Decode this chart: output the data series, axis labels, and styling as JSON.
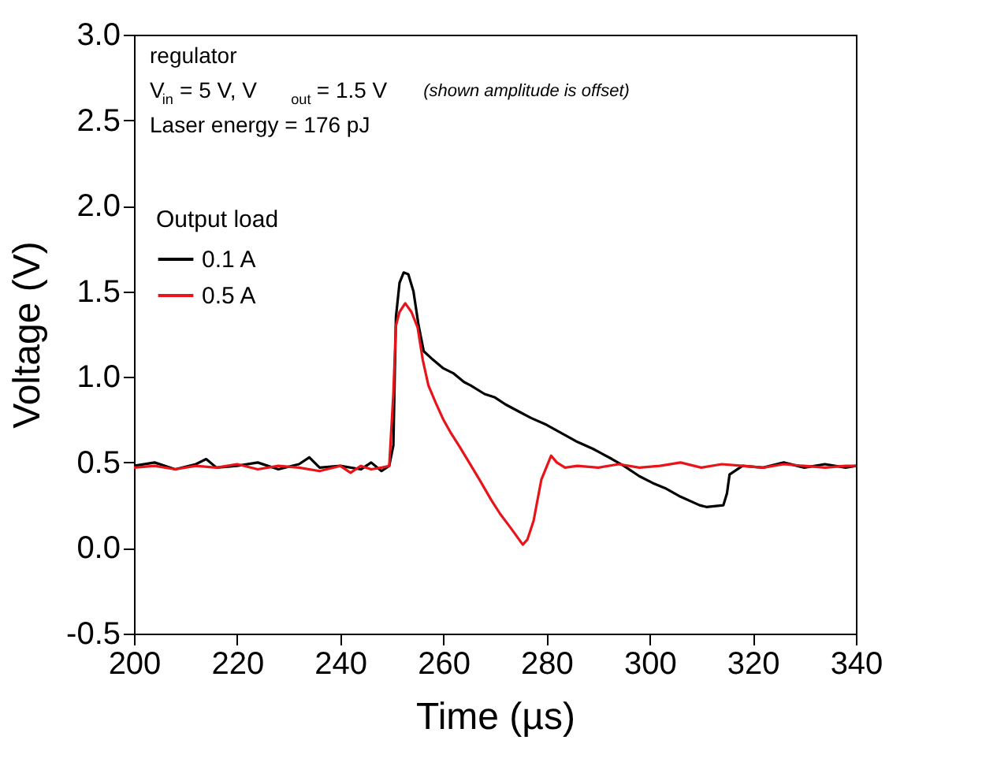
{
  "chart_data": {
    "type": "line",
    "xlabel": "Time (µs)",
    "ylabel": "Voltage (V)",
    "legend_title": "Output load",
    "legend": "top left",
    "grid": false,
    "line_style": "solid",
    "marker": "none",
    "xlim": [
      200,
      340
    ],
    "xticks": [
      200,
      220,
      240,
      260,
      280,
      300,
      320,
      340
    ],
    "ylim": [
      -0.5,
      3.0
    ],
    "yticks": [
      -0.5,
      {
        "value": 0,
        "label": "0.0"
      },
      0.5,
      {
        "value": 1,
        "label": "1.0"
      },
      1.5,
      {
        "value": 2,
        "label": "2.0"
      },
      2.5,
      {
        "value": 3,
        "label": "3.0"
      }
    ],
    "annotations": [
      "regulator",
      "V$_{in}$ = 5 V, V$_{out}$ = 1.5 V",
      "(shown amplitude is offset)",
      "Laser energy = 176 pJ"
    ],
    "series": [
      {
        "name": "0.1 A",
        "color": "#000000",
        "x": [
          200,
          204,
          208,
          212,
          214,
          216,
          220,
          224,
          228,
          232,
          234,
          236,
          240,
          244,
          246,
          248,
          249.5,
          250.3,
          250.8,
          251.5,
          252.3,
          253.2,
          254.2,
          255.2,
          256.2,
          258,
          260,
          262,
          264,
          265.3,
          268,
          270,
          272,
          274.5,
          277,
          280,
          283.6,
          286,
          289,
          292.7,
          295,
          298,
          300.6,
          303,
          306,
          309.7,
          311,
          314.3,
          315,
          315.5,
          318,
          322,
          326,
          330,
          334,
          338,
          340
        ],
        "values": [
          0.48,
          0.5,
          0.46,
          0.49,
          0.52,
          0.47,
          0.48,
          0.5,
          0.46,
          0.49,
          0.53,
          0.47,
          0.48,
          0.46,
          0.5,
          0.45,
          0.48,
          0.6,
          1.35,
          1.55,
          1.61,
          1.6,
          1.5,
          1.3,
          1.15,
          1.1,
          1.05,
          1.02,
          0.97,
          0.95,
          0.9,
          0.88,
          0.84,
          0.8,
          0.76,
          0.72,
          0.66,
          0.62,
          0.58,
          0.52,
          0.48,
          0.42,
          0.38,
          0.35,
          0.3,
          0.25,
          0.24,
          0.25,
          0.32,
          0.43,
          0.48,
          0.47,
          0.5,
          0.47,
          0.49,
          0.47,
          0.48
        ]
      },
      {
        "name": "0.5 A",
        "color": "#e8141a",
        "x": [
          200,
          204,
          208,
          212,
          216,
          220,
          224,
          228,
          232,
          236,
          240,
          242,
          244,
          246,
          248,
          249.5,
          250.3,
          250.8,
          251.5,
          252.6,
          253.8,
          255,
          256,
          257.1,
          258.5,
          260,
          261.5,
          263.2,
          265,
          267,
          269.3,
          271,
          273,
          275.4,
          276.3,
          277.5,
          279,
          280.9,
          282,
          283.6,
          286,
          290,
          294,
          298,
          302,
          306,
          310,
          314,
          318,
          322,
          326,
          330,
          334,
          338,
          340
        ],
        "values": [
          0.47,
          0.48,
          0.46,
          0.48,
          0.47,
          0.49,
          0.46,
          0.48,
          0.47,
          0.45,
          0.48,
          0.44,
          0.48,
          0.46,
          0.47,
          0.48,
          0.9,
          1.3,
          1.38,
          1.43,
          1.38,
          1.29,
          1.1,
          0.95,
          0.85,
          0.75,
          0.67,
          0.59,
          0.5,
          0.4,
          0.28,
          0.2,
          0.12,
          0.02,
          0.05,
          0.16,
          0.4,
          0.54,
          0.5,
          0.47,
          0.48,
          0.47,
          0.49,
          0.47,
          0.48,
          0.5,
          0.47,
          0.49,
          0.48,
          0.47,
          0.49,
          0.48,
          0.47,
          0.48,
          0.48
        ]
      }
    ]
  }
}
